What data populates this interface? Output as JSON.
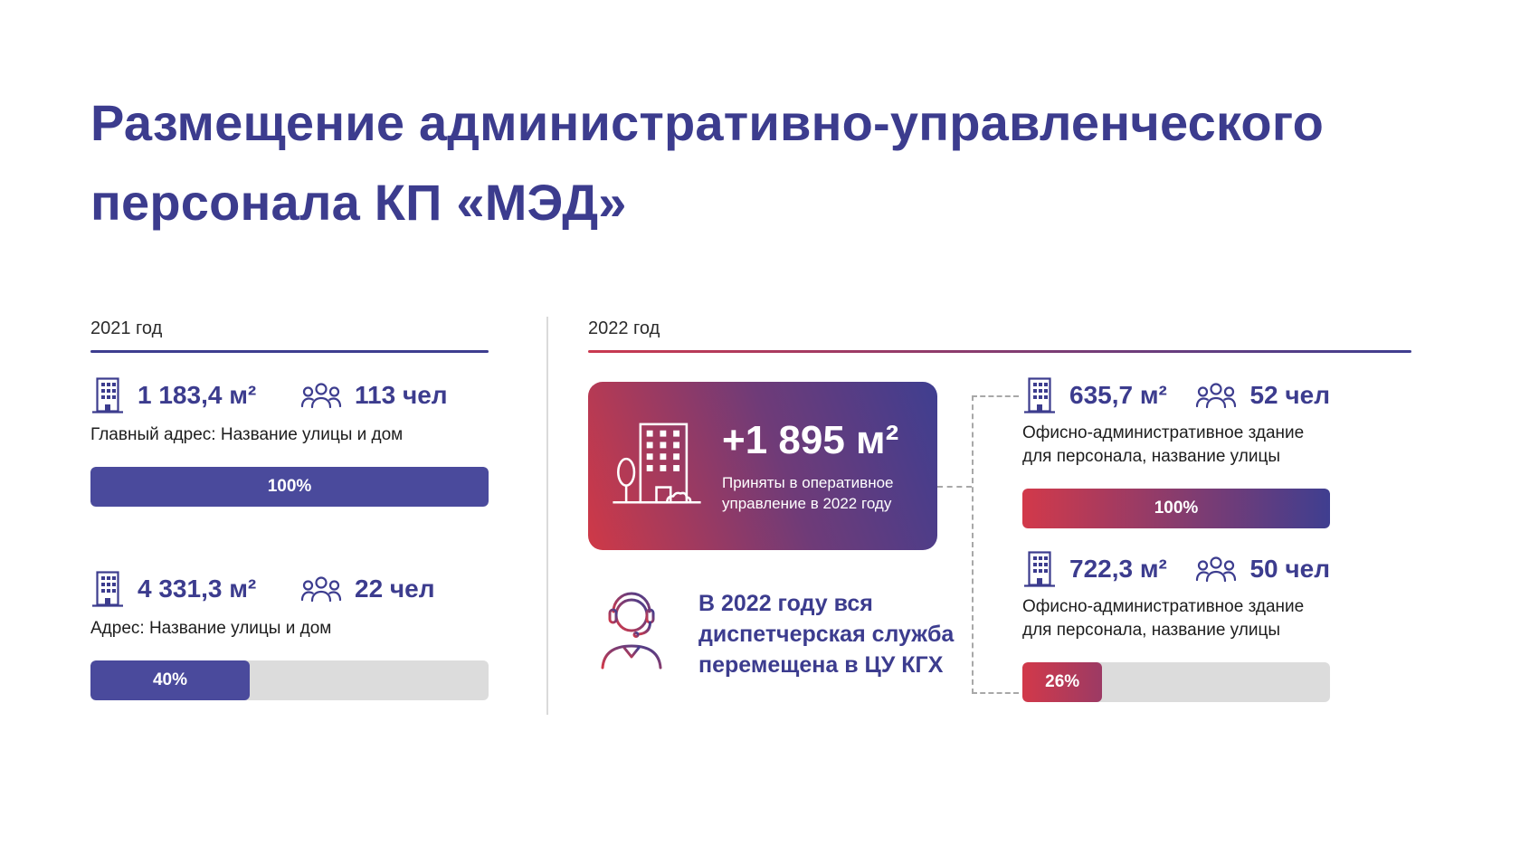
{
  "slide": {
    "title_lines": [
      "Размещение административно-управленческого",
      "персонала КП «МЭД»"
    ]
  },
  "colors": {
    "primary_purple": "#3c3c8e",
    "accent_red": "#d2394a",
    "bar_purple": "#4a4a9c",
    "bar_track_gray": "#dcdcdc",
    "rule_purple": "#3d3d8f"
  },
  "icons": {
    "building": "building-icon",
    "people": "people-icon",
    "big_building": "big-building-icon",
    "dispatcher": "dispatcher-icon"
  },
  "left": {
    "year_label": "2021 год",
    "blocks": [
      {
        "area": "1 183,4 м²",
        "people": "113 чел",
        "address": "Главный адрес: Название улицы и дом",
        "percent": 100,
        "percent_label": "100%"
      },
      {
        "area": "4 331,3 м²",
        "people": "22 чел",
        "address": "Адрес: Название улицы и дом",
        "percent": 40,
        "percent_label": "40%"
      }
    ]
  },
  "right": {
    "year_label": "2022 год",
    "card": {
      "headline": "+1 895 м²",
      "subtext": "Приняты в оперативное управление в 2022 году"
    },
    "dispatcher_note_lines": [
      "В 2022 году вся",
      "диспетчерская служба",
      "перемещена в ЦУ КГХ"
    ],
    "blocks": [
      {
        "area": "635,7 м²",
        "people": "52 чел",
        "address": "Офисно-административное здание для персонала, название улицы",
        "percent": 100,
        "percent_label": "100%"
      },
      {
        "area": "722,3 м²",
        "people": "50 чел",
        "address": "Офисно-административное здание для персонала, название улицы",
        "percent": 26,
        "percent_label": "26%"
      }
    ]
  }
}
